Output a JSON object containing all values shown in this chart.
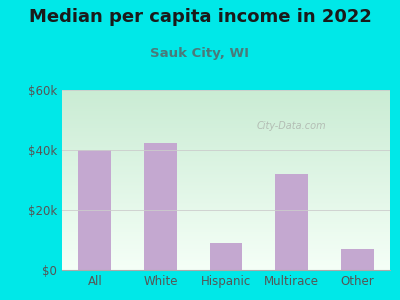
{
  "title": "Median per capita income in 2022",
  "subtitle": "Sauk City, WI",
  "categories": [
    "All",
    "White",
    "Hispanic",
    "Multirace",
    "Other"
  ],
  "values": [
    40000,
    42500,
    9000,
    32000,
    7000
  ],
  "bar_color": "#c4a8d0",
  "title_color": "#1a1a1a",
  "subtitle_color": "#4a7a7a",
  "background_outer": "#00e8e8",
  "ylim": [
    0,
    60000
  ],
  "yticks": [
    0,
    20000,
    40000,
    60000
  ],
  "ytick_labels": [
    "$0",
    "$20k",
    "$40k",
    "$60k"
  ],
  "watermark": "City-Data.com",
  "title_fontsize": 13,
  "subtitle_fontsize": 9.5,
  "tick_fontsize": 8.5
}
